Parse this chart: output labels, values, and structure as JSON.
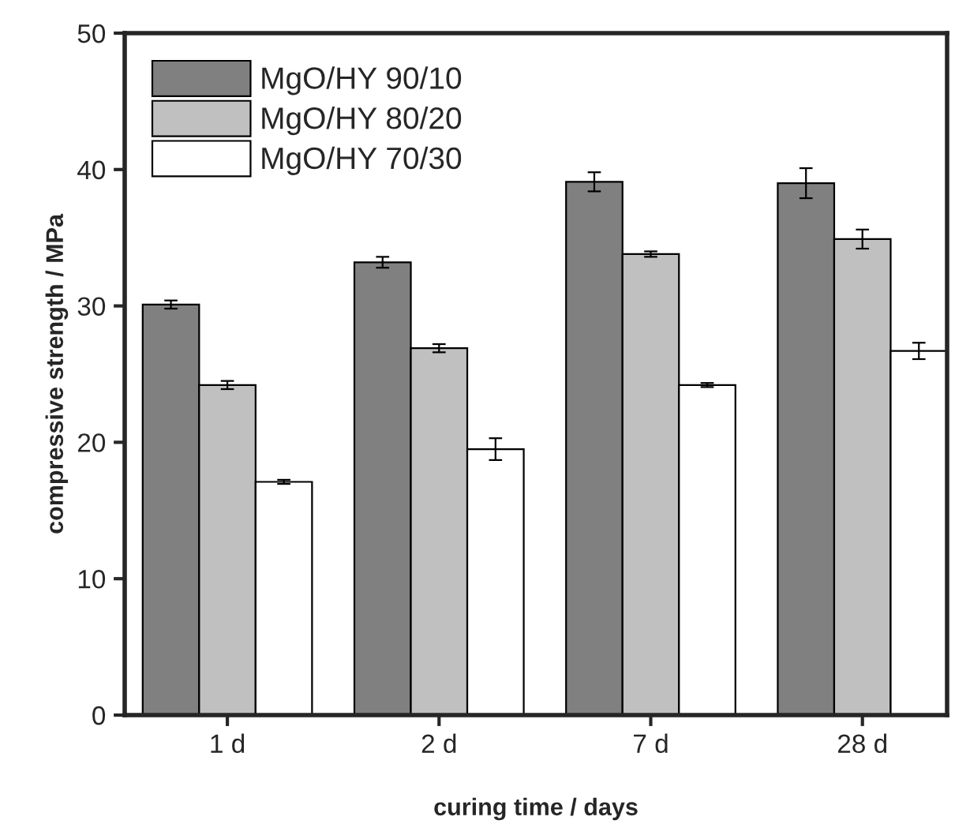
{
  "chart_data": {
    "type": "bar",
    "xlabel": "curing time / days",
    "ylabel": "compressive strength / MPa",
    "categories": [
      "1 d",
      "2 d",
      "7 d",
      "28 d"
    ],
    "series": [
      {
        "name": "MgO/HY 90/10",
        "color": "#808080",
        "values": [
          30.1,
          33.2,
          39.1,
          39.0
        ],
        "errors": [
          0.3,
          0.4,
          0.7,
          1.1
        ]
      },
      {
        "name": "MgO/HY 80/20",
        "color": "#c0c0c0",
        "values": [
          24.2,
          26.9,
          33.8,
          34.9
        ],
        "errors": [
          0.3,
          0.3,
          0.2,
          0.7
        ]
      },
      {
        "name": "MgO/HY 70/30",
        "color": "#ffffff",
        "values": [
          17.1,
          19.5,
          24.2,
          26.7
        ],
        "errors": [
          0.15,
          0.8,
          0.15,
          0.6
        ]
      }
    ],
    "ylim": [
      0,
      50
    ],
    "yticks": [
      0,
      10,
      20,
      30,
      40,
      50
    ],
    "grid": false,
    "legend": "top left"
  }
}
